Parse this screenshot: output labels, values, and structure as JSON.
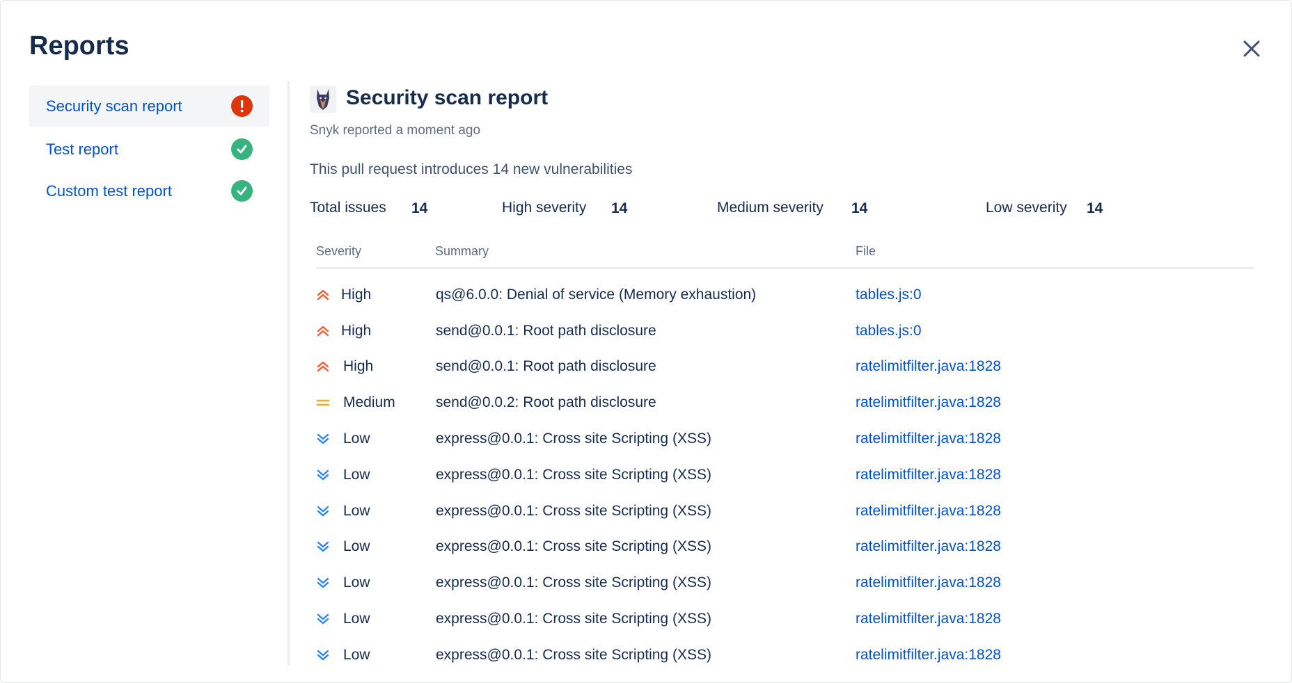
{
  "dialog": {
    "title": "Reports",
    "close_icon": "close-icon"
  },
  "colors": {
    "link": "#0052CC",
    "text": "#172B4D",
    "subtle": "#5E6C84",
    "high": "#FF5630",
    "medium": "#FFAB00",
    "low": "#2684FF",
    "success": "#36B37E",
    "error": "#DE350B",
    "selected_bg": "#F4F5F7"
  },
  "sidebar": {
    "items": [
      {
        "label": "Security scan report",
        "status": "error",
        "selected": true
      },
      {
        "label": "Test report",
        "status": "success",
        "selected": false
      },
      {
        "label": "Custom test report",
        "status": "success",
        "selected": false
      }
    ]
  },
  "report": {
    "title": "Security scan report",
    "logo": "snyk-doberman-logo",
    "subtitle": "Snyk reported a moment ago",
    "description": "This pull request introduces 14 new vulnerabilities",
    "stats": [
      {
        "label": "Total issues",
        "value": "14"
      },
      {
        "label": "High severity",
        "value": "14"
      },
      {
        "label": "Medium severity",
        "value": "14"
      },
      {
        "label": "Low severity",
        "value": "14"
      }
    ],
    "table": {
      "headers": [
        "Severity",
        "Summary",
        "File"
      ],
      "rows": [
        {
          "severity": "High",
          "summary": "qs@6.0.0: Denial of service (Memory exhaustion)",
          "file": "tables.js:0"
        },
        {
          "severity": "High",
          "summary": "send@0.0.1: Root path disclosure",
          "file": "tables.js:0"
        },
        {
          "severity": "High",
          "summary": "send@0.0.1: Root path disclosure",
          "file": "ratelimitfilter.java:1828"
        },
        {
          "severity": "Medium",
          "summary": "send@0.0.2: Root path disclosure",
          "file": "ratelimitfilter.java:1828"
        },
        {
          "severity": "Low",
          "summary": "express@0.0.1: Cross site Scripting (XSS)",
          "file": "ratelimitfilter.java:1828"
        },
        {
          "severity": "Low",
          "summary": "express@0.0.1: Cross site Scripting (XSS)",
          "file": "ratelimitfilter.java:1828"
        },
        {
          "severity": "Low",
          "summary": "express@0.0.1: Cross site Scripting (XSS)",
          "file": "ratelimitfilter.java:1828"
        },
        {
          "severity": "Low",
          "summary": "express@0.0.1: Cross site Scripting (XSS)",
          "file": "ratelimitfilter.java:1828"
        },
        {
          "severity": "Low",
          "summary": "express@0.0.1: Cross site Scripting (XSS)",
          "file": "ratelimitfilter.java:1828"
        },
        {
          "severity": "Low",
          "summary": "express@0.0.1: Cross site Scripting (XSS)",
          "file": "ratelimitfilter.java:1828"
        },
        {
          "severity": "Low",
          "summary": "express@0.0.1: Cross site Scripting (XSS)",
          "file": "ratelimitfilter.java:1828"
        }
      ]
    }
  }
}
